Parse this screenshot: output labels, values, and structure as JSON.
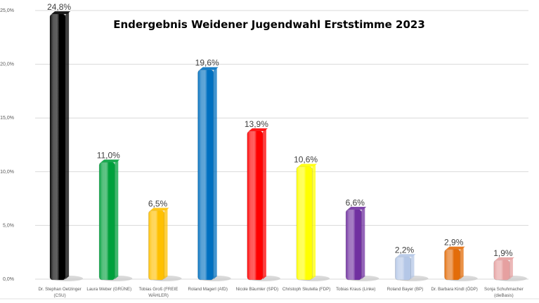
{
  "chart_data": {
    "type": "bar",
    "title": "Endergebnis Weidener Jugendwahl Erststimme 2023",
    "xlabel": "",
    "ylabel": "",
    "ylim": [
      0,
      25
    ],
    "grid": true,
    "legend": "none",
    "yticks": [
      "0,0%",
      "5,0%",
      "10,0%",
      "15,0%",
      "20,0%",
      "25,0%"
    ],
    "categories": [
      [
        "Dr. Stephan Oetzinger",
        "(CSU)"
      ],
      [
        "Laura Weber (GRÜNE)"
      ],
      [
        "Tobias Groß (FREIE",
        "WÄHLER)"
      ],
      [
        "Roland Magerl (AfD)"
      ],
      [
        "Nicole Bäumler (SPD)"
      ],
      [
        "Christoph Skutella (FDP)"
      ],
      [
        "Tobias Kraus (Linke)"
      ],
      [
        "Roland Bayer (BP)"
      ],
      [
        "Dr. Barbara Kindl (ÖDP)"
      ],
      [
        "Sonja Schuhmacher",
        "(dieBasis)"
      ]
    ],
    "values": [
      24.8,
      11.0,
      6.5,
      19.6,
      13.9,
      10.6,
      6.6,
      2.2,
      2.9,
      1.9
    ],
    "data_labels": [
      "24,8%",
      "11,0%",
      "6,5%",
      "19,6%",
      "13,9%",
      "10,6%",
      "6,6%",
      "2,2%",
      "2,9%",
      "1,9%"
    ],
    "colors": [
      "#000000",
      "#00a03c",
      "#ffc000",
      "#0070c0",
      "#ff0000",
      "#ffff00",
      "#7030a0",
      "#b4c7e7",
      "#e36c09",
      "#e6a0a0"
    ]
  }
}
